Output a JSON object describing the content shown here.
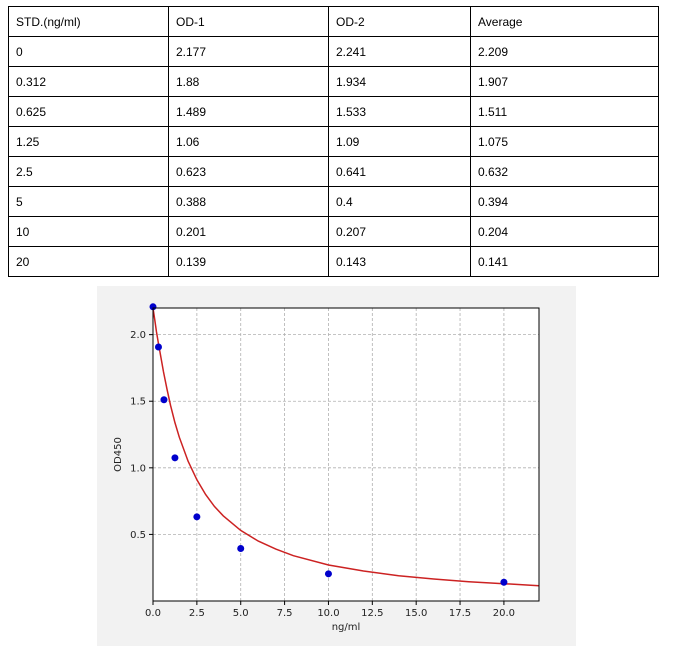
{
  "table": {
    "headers": [
      "STD.(ng/ml)",
      "OD-1",
      "OD-2",
      "Average"
    ],
    "rows": [
      [
        "0",
        "2.177",
        "2.241",
        "2.209"
      ],
      [
        "0.312",
        "1.88",
        "1.934",
        "1.907"
      ],
      [
        "0.625",
        "1.489",
        "1.533",
        "1.511"
      ],
      [
        "1.25",
        "1.06",
        "1.09",
        "1.075"
      ],
      [
        "2.5",
        "0.623",
        "0.641",
        "0.632"
      ],
      [
        "5",
        "0.388",
        "0.4",
        "0.394"
      ],
      [
        "10",
        "0.201",
        "0.207",
        "0.204"
      ],
      [
        "20",
        "0.139",
        "0.143",
        "0.141"
      ]
    ]
  },
  "chart_data": {
    "type": "scatter",
    "xlabel": "ng/ml",
    "ylabel": "OD450",
    "xlim": [
      0,
      22
    ],
    "ylim": [
      0,
      2.2
    ],
    "x_ticks": [
      "0.0",
      "2.5",
      "5.0",
      "7.5",
      "10.0",
      "12.5",
      "15.0",
      "17.5",
      "20.0"
    ],
    "x_tick_values": [
      0,
      2.5,
      5,
      7.5,
      10,
      12.5,
      15,
      17.5,
      20
    ],
    "y_ticks": [
      "0.5",
      "1.0",
      "1.5",
      "2.0"
    ],
    "y_tick_values": [
      0.5,
      1.0,
      1.5,
      2.0
    ],
    "grid": true,
    "points": {
      "x": [
        0,
        0.312,
        0.625,
        1.25,
        2.5,
        5,
        10,
        20
      ],
      "y": [
        2.209,
        1.907,
        1.511,
        1.075,
        0.632,
        0.394,
        0.204,
        0.141
      ],
      "color": "#0000cc"
    },
    "fit_curve": {
      "color": "#cc2222",
      "x": [
        0,
        0.1,
        0.2,
        0.3,
        0.45,
        0.6,
        0.8,
        1.0,
        1.25,
        1.5,
        2.0,
        2.5,
        3.0,
        3.5,
        4.0,
        5.0,
        6.0,
        7.0,
        8.0,
        10.0,
        12.0,
        14.0,
        16.0,
        18.0,
        20.0,
        22.0
      ],
      "y": [
        2.2,
        2.11,
        2.02,
        1.94,
        1.83,
        1.72,
        1.59,
        1.47,
        1.34,
        1.23,
        1.05,
        0.91,
        0.8,
        0.71,
        0.64,
        0.53,
        0.45,
        0.39,
        0.34,
        0.27,
        0.225,
        0.19,
        0.165,
        0.145,
        0.13,
        0.115
      ]
    }
  }
}
